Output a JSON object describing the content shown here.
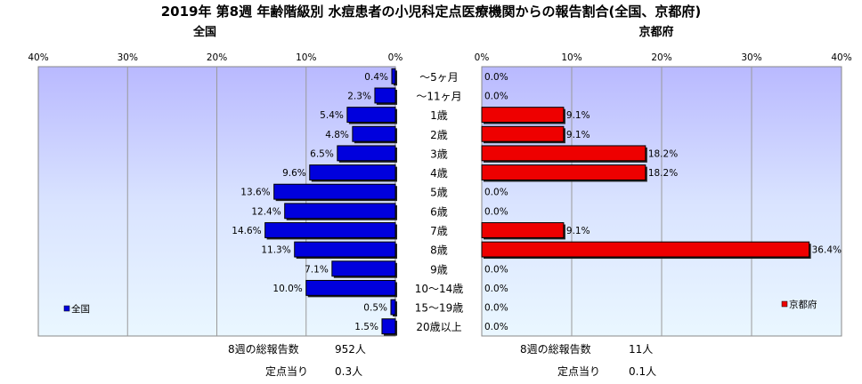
{
  "title": "2019年 第8週 年齢階級別 水痘患者の小児科定点医療機関からの報告割合(全国、京都府)",
  "left_panel": {
    "subtitle": "全国",
    "legend": "全国",
    "color": "#0000dd",
    "total_label": "8週の総報告数",
    "total_value": "952人",
    "per_label": "定点当り",
    "per_value": "0.3人"
  },
  "right_panel": {
    "subtitle": "京都府",
    "legend": "京都府",
    "color": "#ee0000",
    "total_label": "8週の総報告数",
    "total_value": "11人",
    "per_label": "定点当り",
    "per_value": "0.1人"
  },
  "chart_data": [
    {
      "type": "bar",
      "orientation": "horizontal",
      "direction": "reversed",
      "title": "全国",
      "categories": [
        "～5ヶ月",
        "～11ヶ月",
        "1歳",
        "2歳",
        "3歳",
        "4歳",
        "5歳",
        "6歳",
        "7歳",
        "8歳",
        "9歳",
        "10～14歳",
        "15～19歳",
        "20歳以上"
      ],
      "series": [
        {
          "name": "全国",
          "values": [
            0.4,
            2.3,
            5.4,
            4.8,
            6.5,
            9.6,
            13.6,
            12.4,
            14.6,
            11.3,
            7.1,
            10.0,
            0.5,
            1.5
          ],
          "labels": [
            "0.4%",
            "2.3%",
            "5.4%",
            "4.8%",
            "6.5%",
            "9.6%",
            "13.6%",
            "12.4%",
            "14.6%",
            "11.3%",
            "7.1%",
            "10.0%",
            "0.5%",
            "1.5%"
          ]
        }
      ],
      "xlim": [
        0,
        40
      ],
      "ticks": [
        "40%",
        "30%",
        "20%",
        "10%",
        "0%"
      ],
      "grid": true,
      "legend_position": "bottom-left"
    },
    {
      "type": "bar",
      "orientation": "horizontal",
      "title": "京都府",
      "categories": [
        "～5ヶ月",
        "～11ヶ月",
        "1歳",
        "2歳",
        "3歳",
        "4歳",
        "5歳",
        "6歳",
        "7歳",
        "8歳",
        "9歳",
        "10～14歳",
        "15～19歳",
        "20歳以上"
      ],
      "series": [
        {
          "name": "京都府",
          "values": [
            0.0,
            0.0,
            9.1,
            9.1,
            18.2,
            18.2,
            0.0,
            0.0,
            9.1,
            36.4,
            0.0,
            0.0,
            0.0,
            0.0
          ],
          "labels": [
            "0.0%",
            "0.0%",
            "9.1%",
            "9.1%",
            "18.2%",
            "18.2%",
            "0.0%",
            "0.0%",
            "9.1%",
            "36.4%",
            "0.0%",
            "0.0%",
            "0.0%",
            "0.0%"
          ]
        }
      ],
      "xlim": [
        0,
        40
      ],
      "ticks": [
        "0%",
        "10%",
        "20%",
        "30%",
        "40%"
      ],
      "grid": true,
      "legend_position": "bottom-right"
    }
  ]
}
